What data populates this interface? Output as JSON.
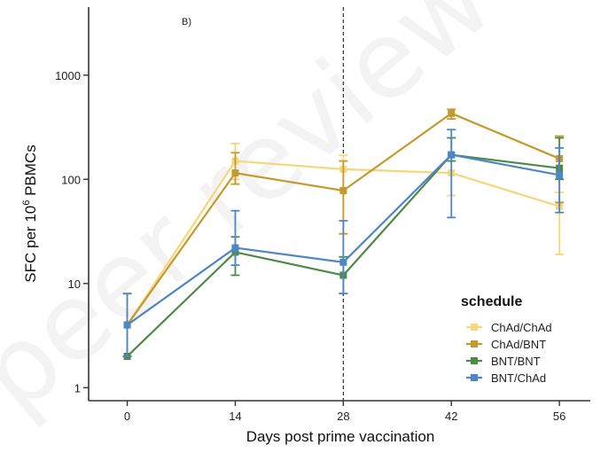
{
  "panel_label": "B)",
  "watermark": "peer reviewed",
  "chart_data": {
    "type": "line",
    "title": "",
    "xlabel": "Days post prime vaccination",
    "ylabel_main": "SFC per 10",
    "ylabel_sup": "6",
    "ylabel_end": " PBMCs",
    "yscale": "log",
    "ylim": [
      0.75,
      4500
    ],
    "xlim": [
      -5,
      60
    ],
    "x_ticks": [
      0,
      14,
      28,
      42,
      56
    ],
    "x_tick_labels": [
      "0",
      "14",
      "28",
      "42",
      "56"
    ],
    "y_ticks": [
      1,
      10,
      100,
      1000
    ],
    "y_tick_labels": [
      "1",
      "10",
      "100",
      "1000"
    ],
    "reference_line_x": 28,
    "legend": {
      "title": "schedule",
      "position": "bottom-right"
    },
    "x": [
      0,
      14,
      28,
      42,
      56
    ],
    "series": [
      {
        "name": "ChAd/ChAd",
        "color": "#f5d77a",
        "values": [
          4,
          150,
          125,
          115,
          55
        ],
        "err_low": [
          2,
          100,
          30,
          70,
          19
        ],
        "err_high": [
          8,
          220,
          170,
          170,
          75
        ]
      },
      {
        "name": "ChAd/BNT",
        "color": "#c49a2a",
        "values": [
          4,
          115,
          78,
          430,
          158
        ],
        "err_low": [
          2,
          90,
          30,
          380,
          60
        ],
        "err_high": [
          8,
          180,
          150,
          470,
          260
        ]
      },
      {
        "name": "BNT/BNT",
        "color": "#4c8a48",
        "values": [
          2,
          20,
          12,
          172,
          128
        ],
        "err_low": [
          2,
          12,
          8,
          150,
          100
        ],
        "err_high": [
          2,
          28,
          18,
          250,
          250
        ]
      },
      {
        "name": "BNT/ChAd",
        "color": "#4f86c6",
        "values": [
          4,
          22,
          16,
          172,
          110
        ],
        "err_low": [
          2,
          15,
          8,
          43,
          48
        ],
        "err_high": [
          8,
          50,
          40,
          300,
          200
        ]
      }
    ]
  }
}
